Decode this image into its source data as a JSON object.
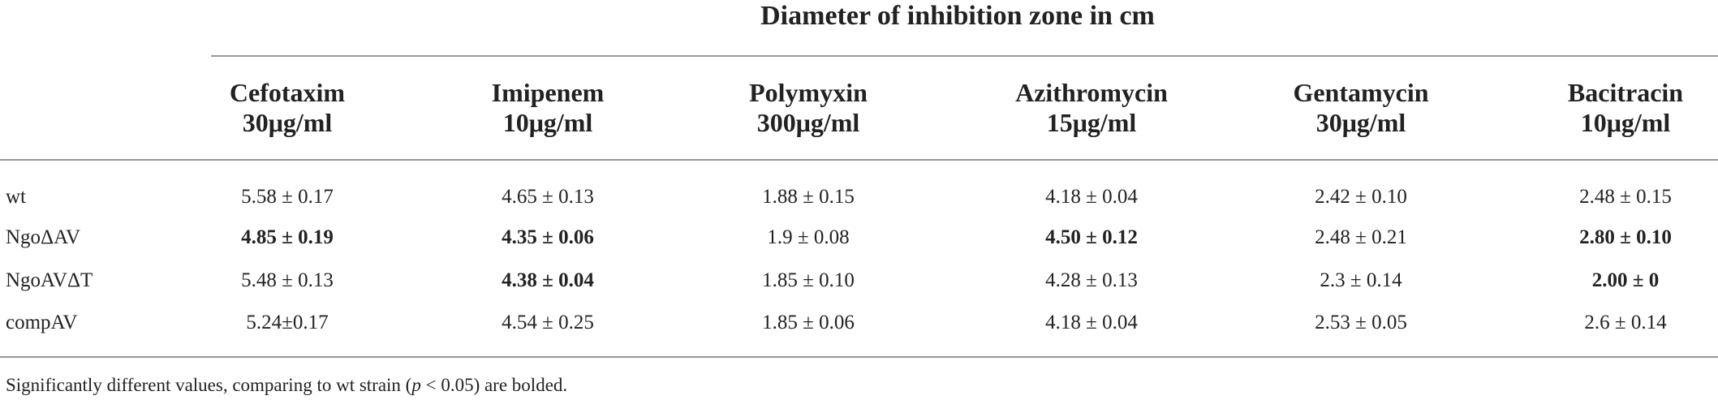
{
  "table": {
    "title": "Diameter of inhibition zone in cm",
    "columns": [
      {
        "name": "Cefotaxim",
        "dose": "30μg/ml"
      },
      {
        "name": "Imipenem",
        "dose": "10μg/ml"
      },
      {
        "name": "Polymyxin",
        "dose": "300μg/ml"
      },
      {
        "name": "Azithromycin",
        "dose": "15μg/ml"
      },
      {
        "name": "Gentamycin",
        "dose": "30μg/ml"
      },
      {
        "name": "Bacitracin",
        "dose": "10μg/ml"
      }
    ],
    "rows": [
      {
        "label": "wt",
        "cells": [
          "5.58 ± 0.17",
          "4.65 ± 0.13",
          "1.88 ± 0.15",
          "4.18 ± 0.04",
          "2.42 ± 0.10",
          "2.48 ± 0.15"
        ],
        "bold": [
          false,
          false,
          false,
          false,
          false,
          false
        ]
      },
      {
        "label": "NgoΔAV",
        "cells": [
          "4.85 ± 0.19",
          "4.35 ± 0.06",
          "1.9 ± 0.08",
          "4.50 ± 0.12",
          "2.48 ± 0.21",
          "2.80 ± 0.10"
        ],
        "bold": [
          true,
          true,
          false,
          true,
          false,
          true
        ]
      },
      {
        "label": "NgoAVΔT",
        "cells": [
          "5.48 ± 0.13",
          "4.38 ± 0.04",
          "1.85 ± 0.10",
          "4.28 ± 0.13",
          "2.3 ± 0.14",
          "2.00 ± 0"
        ],
        "bold": [
          false,
          true,
          false,
          false,
          false,
          true
        ]
      },
      {
        "label": "compAV",
        "cells": [
          "5.24±0.17",
          "4.54 ± 0.25",
          "1.85 ± 0.06",
          "4.18 ± 0.04",
          "2.53 ± 0.05",
          "2.6 ± 0.14"
        ],
        "bold": [
          false,
          false,
          false,
          false,
          false,
          false
        ]
      }
    ],
    "footnote": {
      "before": "Significantly different values, comparing to wt strain (",
      "italic": "p",
      "after": " < 0.05) are bolded."
    }
  }
}
